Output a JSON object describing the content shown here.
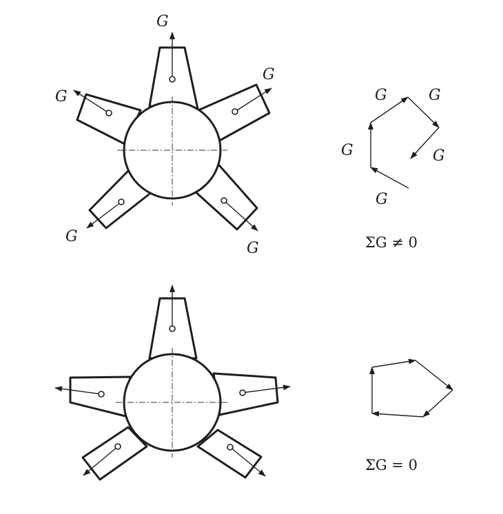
{
  "top": {
    "force_labels": [
      "G",
      "G",
      "G",
      "G",
      "G"
    ],
    "polygon_labels": [
      "G",
      "G",
      "G",
      "G",
      "G"
    ],
    "equation": "ΣG ≠ 0"
  },
  "bottom": {
    "equation": "ΣG = 0"
  }
}
